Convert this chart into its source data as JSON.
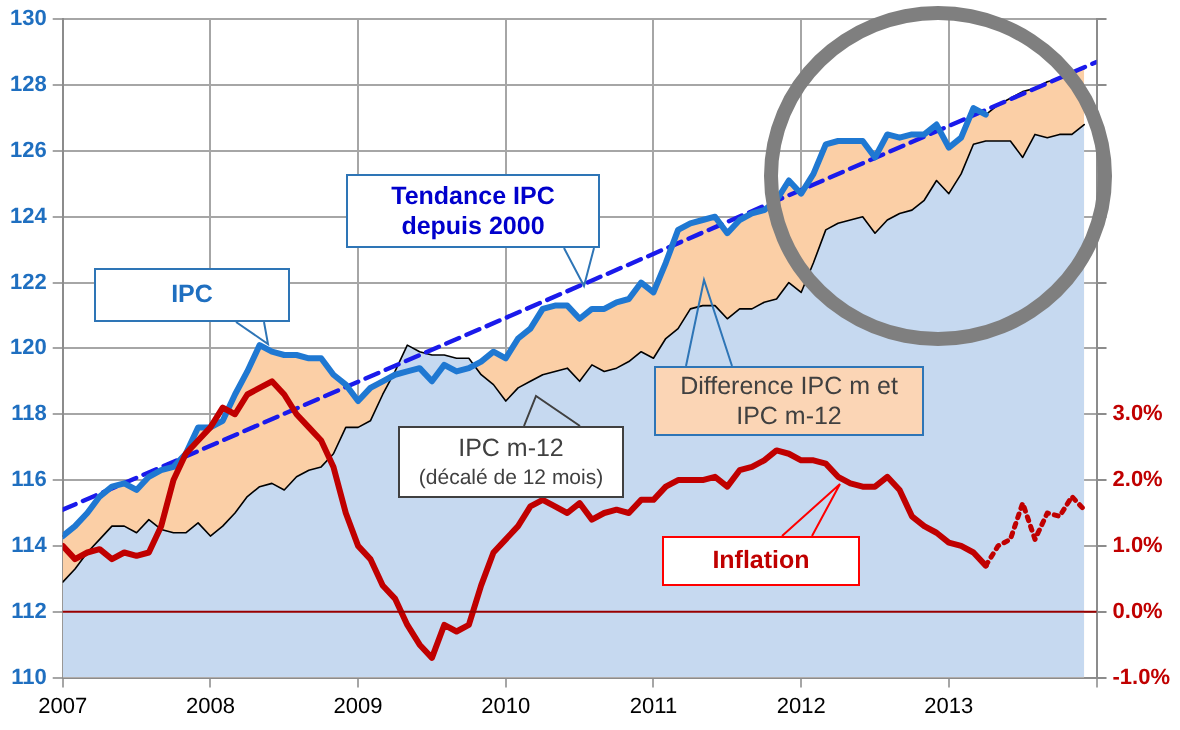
{
  "chart_data": {
    "type": "line",
    "x": [
      "2007-01",
      "2007-02",
      "2007-03",
      "2007-04",
      "2007-05",
      "2007-06",
      "2007-07",
      "2007-08",
      "2007-09",
      "2007-10",
      "2007-11",
      "2007-12",
      "2008-01",
      "2008-02",
      "2008-03",
      "2008-04",
      "2008-05",
      "2008-06",
      "2008-07",
      "2008-08",
      "2008-09",
      "2008-10",
      "2008-11",
      "2008-12",
      "2009-01",
      "2009-02",
      "2009-03",
      "2009-04",
      "2009-05",
      "2009-06",
      "2009-07",
      "2009-08",
      "2009-09",
      "2009-10",
      "2009-11",
      "2009-12",
      "2010-01",
      "2010-02",
      "2010-03",
      "2010-04",
      "2010-05",
      "2010-06",
      "2010-07",
      "2010-08",
      "2010-09",
      "2010-10",
      "2010-11",
      "2010-12",
      "2011-01",
      "2011-02",
      "2011-03",
      "2011-04",
      "2011-05",
      "2011-06",
      "2011-07",
      "2011-08",
      "2011-09",
      "2011-10",
      "2011-11",
      "2011-12",
      "2012-01",
      "2012-02",
      "2012-03",
      "2012-04",
      "2012-05",
      "2012-06",
      "2012-07",
      "2012-08",
      "2012-09",
      "2012-10",
      "2012-11",
      "2012-12",
      "2013-01",
      "2013-02",
      "2013-03",
      "2013-04",
      "2013-05",
      "2013-06",
      "2013-07",
      "2013-08",
      "2013-09",
      "2013-10",
      "2013-11",
      "2013-12"
    ],
    "series": [
      {
        "name": "Difference IPC m et IPC m-12",
        "type": "area",
        "color": "#fbcfa6",
        "values": [
          114.3,
          114.6,
          115.0,
          115.5,
          115.8,
          115.9,
          115.7,
          116.1,
          116.3,
          116.4,
          116.8,
          117.6,
          117.6,
          117.8,
          118.6,
          119.3,
          120.1,
          119.9,
          119.8,
          119.8,
          119.7,
          119.7,
          119.2,
          118.9,
          118.4,
          118.8,
          119.0,
          119.2,
          119.3,
          119.4,
          119.0,
          119.5,
          119.3,
          119.4,
          119.6,
          119.9,
          119.7,
          120.3,
          120.6,
          121.2,
          121.3,
          121.3,
          120.9,
          121.2,
          121.2,
          121.4,
          121.5,
          122.0,
          121.7,
          122.6,
          123.6,
          123.8,
          123.9,
          124.0,
          123.5,
          123.9,
          124.1,
          124.2,
          124.5,
          125.1,
          124.7,
          125.3,
          126.2,
          126.3,
          126.3,
          126.3,
          125.8,
          126.5,
          126.4,
          126.5,
          126.5,
          126.8,
          126.1,
          126.4,
          127.3,
          127.1,
          127.4,
          127.6,
          127.8,
          127.9,
          128.1,
          128.2,
          128.4,
          128.5
        ]
      },
      {
        "name": "IPC m-12",
        "type": "area",
        "color": "#c6d9f0",
        "values": [
          112.9,
          113.3,
          113.8,
          114.2,
          114.6,
          114.6,
          114.4,
          114.8,
          114.5,
          114.4,
          114.4,
          114.7,
          114.3,
          114.6,
          115.0,
          115.5,
          115.8,
          115.9,
          115.7,
          116.1,
          116.3,
          116.4,
          116.8,
          117.6,
          117.6,
          117.8,
          118.6,
          119.3,
          120.1,
          119.9,
          119.8,
          119.8,
          119.7,
          119.7,
          119.2,
          118.9,
          118.4,
          118.8,
          119.0,
          119.2,
          119.3,
          119.4,
          119.0,
          119.5,
          119.3,
          119.4,
          119.6,
          119.9,
          119.7,
          120.3,
          120.6,
          121.2,
          121.3,
          121.3,
          120.9,
          121.2,
          121.2,
          121.4,
          121.5,
          122.0,
          121.7,
          122.6,
          123.6,
          123.8,
          123.9,
          124.0,
          123.5,
          123.9,
          124.1,
          124.2,
          124.5,
          125.1,
          124.7,
          125.3,
          126.2,
          126.3,
          126.3,
          126.3,
          125.8,
          126.5,
          126.4,
          126.5,
          126.5,
          126.8
        ]
      },
      {
        "name": "Tendance IPC depuis 2000",
        "line_style": "dashed",
        "color": "#1a1aeb",
        "x": [
          "2007-01",
          "2014-01"
        ],
        "values": [
          115.1,
          128.7
        ]
      },
      {
        "name": "IPC",
        "color": "#1f78d2",
        "values": [
          114.3,
          114.6,
          115.0,
          115.5,
          115.8,
          115.9,
          115.7,
          116.1,
          116.3,
          116.4,
          116.8,
          117.6,
          117.6,
          117.8,
          118.6,
          119.3,
          120.1,
          119.9,
          119.8,
          119.8,
          119.7,
          119.7,
          119.2,
          118.9,
          118.4,
          118.8,
          119.0,
          119.2,
          119.3,
          119.4,
          119.0,
          119.5,
          119.3,
          119.4,
          119.6,
          119.9,
          119.7,
          120.3,
          120.6,
          121.2,
          121.3,
          121.3,
          120.9,
          121.2,
          121.2,
          121.4,
          121.5,
          122.0,
          121.7,
          122.6,
          123.6,
          123.8,
          123.9,
          124.0,
          123.5,
          123.9,
          124.1,
          124.2,
          124.5,
          125.1,
          124.7,
          125.3,
          126.2,
          126.3,
          126.3,
          126.3,
          125.8,
          126.5,
          126.4,
          126.5,
          126.5,
          126.8,
          126.1,
          126.4,
          127.3,
          127.1,
          null,
          null,
          null,
          null,
          null,
          null,
          null,
          null
        ]
      },
      {
        "name": "Inflation",
        "axis": "y2",
        "color": "#c00000",
        "values": [
          1.0,
          0.8,
          0.9,
          0.95,
          0.8,
          0.9,
          0.85,
          0.9,
          1.3,
          2.0,
          2.4,
          2.6,
          2.8,
          3.1,
          3.0,
          3.3,
          3.4,
          3.5,
          3.3,
          3.0,
          2.8,
          2.6,
          2.2,
          1.5,
          1.0,
          0.8,
          0.4,
          0.2,
          -0.2,
          -0.5,
          -0.7,
          -0.2,
          -0.3,
          -0.2,
          0.4,
          0.9,
          1.1,
          1.3,
          1.6,
          1.7,
          1.6,
          1.5,
          1.65,
          1.4,
          1.5,
          1.55,
          1.5,
          1.7,
          1.7,
          1.9,
          2.0,
          2.0,
          2.0,
          2.05,
          1.9,
          2.15,
          2.2,
          2.3,
          2.45,
          2.4,
          2.3,
          2.3,
          2.25,
          2.05,
          1.95,
          1.9,
          1.9,
          2.05,
          1.85,
          1.45,
          1.3,
          1.2,
          1.05,
          1.0,
          0.9,
          0.7,
          null,
          null,
          null,
          null,
          null,
          null,
          null,
          null
        ]
      },
      {
        "axis": "y2",
        "line_style": "dotted",
        "color": "#c00000",
        "x": [
          "2013-04",
          "2013-05",
          "2013-06",
          "2013-07",
          "2013-08",
          "2013-09",
          "2013-10",
          "2013-11",
          "2013-12"
        ],
        "values": [
          0.7,
          1.0,
          1.1,
          1.65,
          1.1,
          1.5,
          1.45,
          1.75,
          1.55
        ]
      }
    ],
    "xlim": [
      "2007-01",
      "2014-01"
    ],
    "xticks": [
      "2007",
      "2008",
      "2009",
      "2010",
      "2011",
      "2012",
      "2013",
      {
        "value": "2014",
        "label": null
      }
    ],
    "ylim": [
      110,
      130
    ],
    "yticks": [
      110,
      112,
      114,
      116,
      118,
      120,
      122,
      124,
      126,
      128,
      130
    ],
    "y2lim": [
      -1,
      9
    ],
    "y2ticks": [
      {
        "value": -1,
        "label": "-1.0%"
      },
      {
        "value": 0,
        "label": "0.0%"
      },
      {
        "value": 1,
        "label": "1.0%"
      },
      {
        "value": 2,
        "label": "2.0%"
      },
      {
        "value": 3,
        "label": "3.0%"
      },
      {
        "value": 4,
        "label": null
      },
      {
        "value": 5,
        "label": null
      },
      {
        "value": 6,
        "label": null
      },
      {
        "value": 7,
        "label": null
      },
      {
        "value": 8,
        "label": null
      },
      {
        "value": 9,
        "label": null
      }
    ],
    "ref_lines": [
      {
        "axis": "y2",
        "value": 0,
        "color": "#990000"
      }
    ],
    "annotations": [
      "(décalé de 12 mois)"
    ],
    "grid": true
  }
}
